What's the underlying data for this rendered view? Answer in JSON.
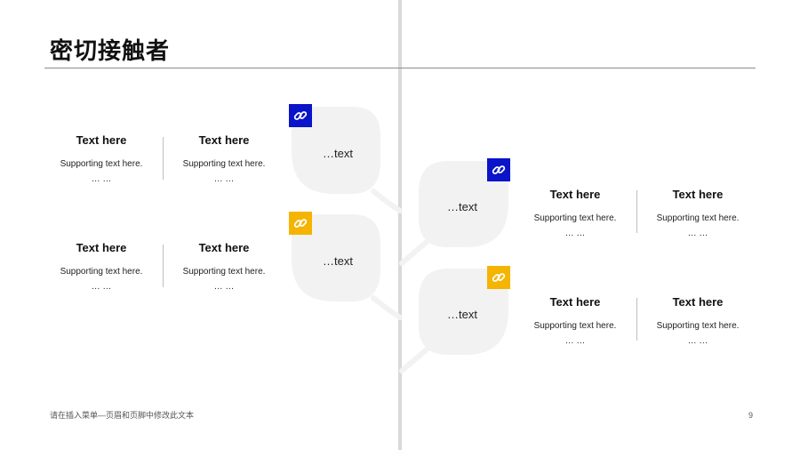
{
  "title": "密切接触者",
  "colors": {
    "leaf": "#f2f2f2",
    "accent_blue": "#0a14c8",
    "accent_yellow": "#f5b400",
    "trunk": "#d9d9d9"
  },
  "leaves": [
    {
      "label": "…text",
      "icon": "link-icon",
      "badge_color": "#0a14c8"
    },
    {
      "label": "…text",
      "icon": "link-icon",
      "badge_color": "#f5b400"
    },
    {
      "label": "…text",
      "icon": "link-icon",
      "badge_color": "#0a14c8"
    },
    {
      "label": "…text",
      "icon": "link-icon",
      "badge_color": "#f5b400"
    }
  ],
  "groups": [
    {
      "cards": [
        {
          "title": "Text here",
          "text": "Supporting text here.",
          "ellipsis": "… …"
        },
        {
          "title": "Text here",
          "text": "Supporting text here.",
          "ellipsis": "… …"
        }
      ]
    },
    {
      "cards": [
        {
          "title": "Text here",
          "text": "Supporting text here.",
          "ellipsis": "… …"
        },
        {
          "title": "Text here",
          "text": "Supporting text here.",
          "ellipsis": "… …"
        }
      ]
    },
    {
      "cards": [
        {
          "title": "Text here",
          "text": "Supporting text here.",
          "ellipsis": "… …"
        },
        {
          "title": "Text here",
          "text": "Supporting text here.",
          "ellipsis": "… …"
        }
      ]
    },
    {
      "cards": [
        {
          "title": "Text here",
          "text": "Supporting text here.",
          "ellipsis": "… …"
        },
        {
          "title": "Text here",
          "text": "Supporting text here.",
          "ellipsis": "… …"
        }
      ]
    }
  ],
  "footer": {
    "note": "请在插入菜单—页眉和页脚中修改此文本",
    "page_number": "9"
  }
}
